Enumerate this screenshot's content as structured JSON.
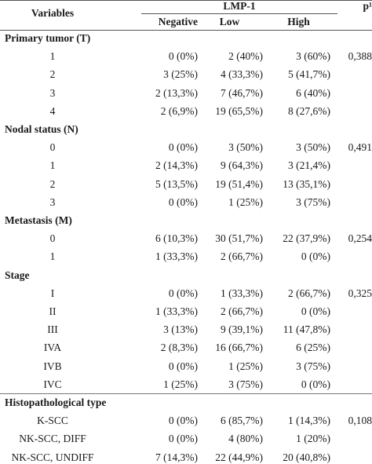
{
  "header": {
    "variables": "Variables",
    "group": "LMP-1",
    "negative": "Negative",
    "low": "Low",
    "high": "High",
    "p": "p¹"
  },
  "sections": [
    {
      "title": "Primary tumor (T)",
      "p": "0,388",
      "rows": [
        {
          "label": "1",
          "negative": "0 (0%)",
          "low": "2 (40%)",
          "high": "3 (60%)"
        },
        {
          "label": "2",
          "negative": "3 (25%)",
          "low": "4 (33,3%)",
          "high": "5 (41,7%)"
        },
        {
          "label": "3",
          "negative": "2 (13,3%)",
          "low": "7 (46,7%)",
          "high": "6 (40%)"
        },
        {
          "label": "4",
          "negative": "2 (6,9%)",
          "low": "19 (65,5%)",
          "high": "8 (27,6%)"
        }
      ]
    },
    {
      "title": "Nodal status (N)",
      "p": "0,491",
      "rows": [
        {
          "label": "0",
          "negative": "0 (0%)",
          "low": "3 (50%)",
          "high": "3 (50%)"
        },
        {
          "label": "1",
          "negative": "2 (14,3%)",
          "low": "9 (64,3%)",
          "high": "3 (21,4%)"
        },
        {
          "label": "2",
          "negative": "5 (13,5%)",
          "low": "19 (51,4%)",
          "high": "13 (35,1%)"
        },
        {
          "label": "3",
          "negative": "0 (0%)",
          "low": "1 (25%)",
          "high": "3 (75%)"
        }
      ]
    },
    {
      "title": "Metastasis (M)",
      "p": "0,254",
      "rows": [
        {
          "label": "0",
          "negative": "6 (10,3%)",
          "low": "30 (51,7%)",
          "high": "22 (37,9%)"
        },
        {
          "label": "1",
          "negative": "1 (33,3%)",
          "low": "2 (66,7%)",
          "high": "0 (0%)"
        }
      ]
    },
    {
      "title": "Stage",
      "p": "0,325",
      "rows": [
        {
          "label": "I",
          "negative": "0 (0%)",
          "low": "1 (33,3%)",
          "high": "2 (66,7%)"
        },
        {
          "label": "II",
          "negative": "1 (33,3%)",
          "low": "2 (66,7%)",
          "high": "0 (0%)"
        },
        {
          "label": "III",
          "negative": "3 (13%)",
          "low": "9 (39,1%)",
          "high": "11 (47,8%)"
        },
        {
          "label": "IVA",
          "negative": "2 (8,3%)",
          "low": "16 (66,7%)",
          "high": "6 (25%)"
        },
        {
          "label": "IVB",
          "negative": "0 (0%)",
          "low": "1 (25%)",
          "high": "3 (75%)"
        },
        {
          "label": "IVC",
          "negative": "1 (25%)",
          "low": "3 (75%)",
          "high": "0 (0%)"
        }
      ]
    },
    {
      "title": "Histopathological type",
      "p": "0,108",
      "rows": [
        {
          "label": "K-SCC",
          "negative": "0 (0%)",
          "low": "6 (85,7%)",
          "high": "1 (14,3%)"
        },
        {
          "label": "NK-SCC, DIFF",
          "negative": "0 (0%)",
          "low": "4 (80%)",
          "high": "1 (20%)"
        },
        {
          "label": "NK-SCC, UNDIFF",
          "negative": "7 (14,3%)",
          "low": "22 (44,9%)",
          "high": "20 (40,8%)"
        }
      ]
    }
  ]
}
